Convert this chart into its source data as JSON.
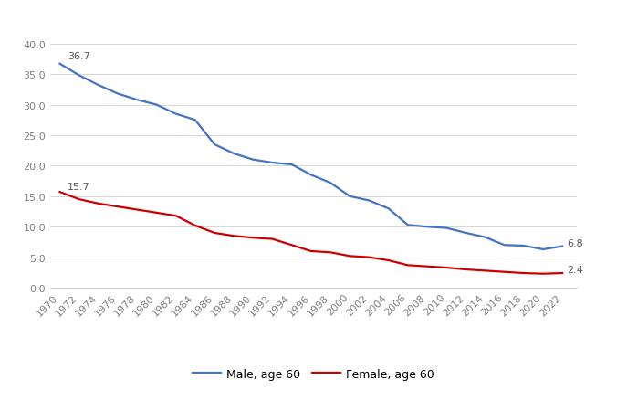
{
  "years": [
    1970,
    1972,
    1974,
    1976,
    1978,
    1980,
    1982,
    1984,
    1986,
    1988,
    1990,
    1992,
    1994,
    1996,
    1998,
    2000,
    2002,
    2004,
    2006,
    2008,
    2010,
    2012,
    2014,
    2016,
    2018,
    2020,
    2022
  ],
  "male": [
    36.7,
    34.8,
    33.2,
    31.8,
    30.8,
    30.0,
    28.5,
    27.5,
    23.5,
    22.0,
    21.0,
    20.5,
    20.2,
    18.5,
    17.2,
    15.0,
    14.3,
    13.0,
    10.3,
    10.0,
    9.8,
    9.0,
    8.3,
    7.0,
    6.9,
    6.3,
    6.8
  ],
  "female": [
    15.7,
    14.5,
    13.8,
    13.3,
    12.8,
    12.3,
    11.8,
    10.2,
    9.0,
    8.5,
    8.2,
    8.0,
    7.0,
    6.0,
    5.8,
    5.2,
    5.0,
    4.5,
    3.7,
    3.5,
    3.3,
    3.0,
    2.8,
    2.6,
    2.4,
    2.3,
    2.4
  ],
  "male_color": "#4472C4",
  "female_color": "#CC0000",
  "male_label": "Male, age 60",
  "female_label": "Female, age 60",
  "male_start_annotation": "36.7",
  "female_start_annotation": "15.7",
  "male_end_annotation": "6.8",
  "female_end_annotation": "2.4",
  "ylim": [
    0,
    44
  ],
  "yticks": [
    0.0,
    5.0,
    10.0,
    15.0,
    20.0,
    25.0,
    30.0,
    35.0,
    40.0
  ],
  "background_color": "#ffffff",
  "grid_color": "#d0d0d0",
  "tick_label_color": "#808080",
  "line_width": 1.6,
  "legend_fontsize": 9,
  "tick_fontsize": 8,
  "annotation_fontsize": 8,
  "annotation_color": "#555555"
}
